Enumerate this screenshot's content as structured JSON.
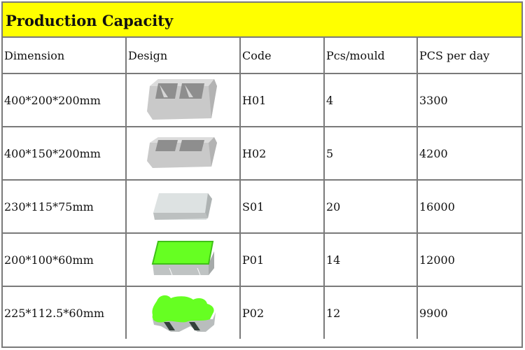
{
  "title": "Production Capacity",
  "headers": [
    "Dimension",
    "Design",
    "Code",
    "Pcs/mould",
    "PCS per day"
  ],
  "rows": [
    {
      "dimension": "400*200*200mm",
      "design": "hollow-block-icon",
      "code": "H01",
      "pcs_mould": "4",
      "pcs_day": "3300"
    },
    {
      "dimension": "400*150*200mm",
      "design": "hollow-block-icon",
      "code": "H02",
      "pcs_mould": "5",
      "pcs_day": "4200"
    },
    {
      "dimension": "230*115*75mm",
      "design": "solid-brick-icon",
      "code": "S01",
      "pcs_mould": "20",
      "pcs_day": "16000"
    },
    {
      "dimension": "200*100*60mm",
      "design": "rectangle-paver-icon",
      "code": "P01",
      "pcs_mould": "14",
      "pcs_day": "12000"
    },
    {
      "dimension": "225*112.5*60mm",
      "design": "zigzag-paver-icon",
      "code": "P02",
      "pcs_mould": "12",
      "pcs_day": "9900"
    }
  ],
  "colors": {
    "title_bg": "#ffff00",
    "paver_top": "#66ff22",
    "block_gray": "#c8c8c8"
  }
}
